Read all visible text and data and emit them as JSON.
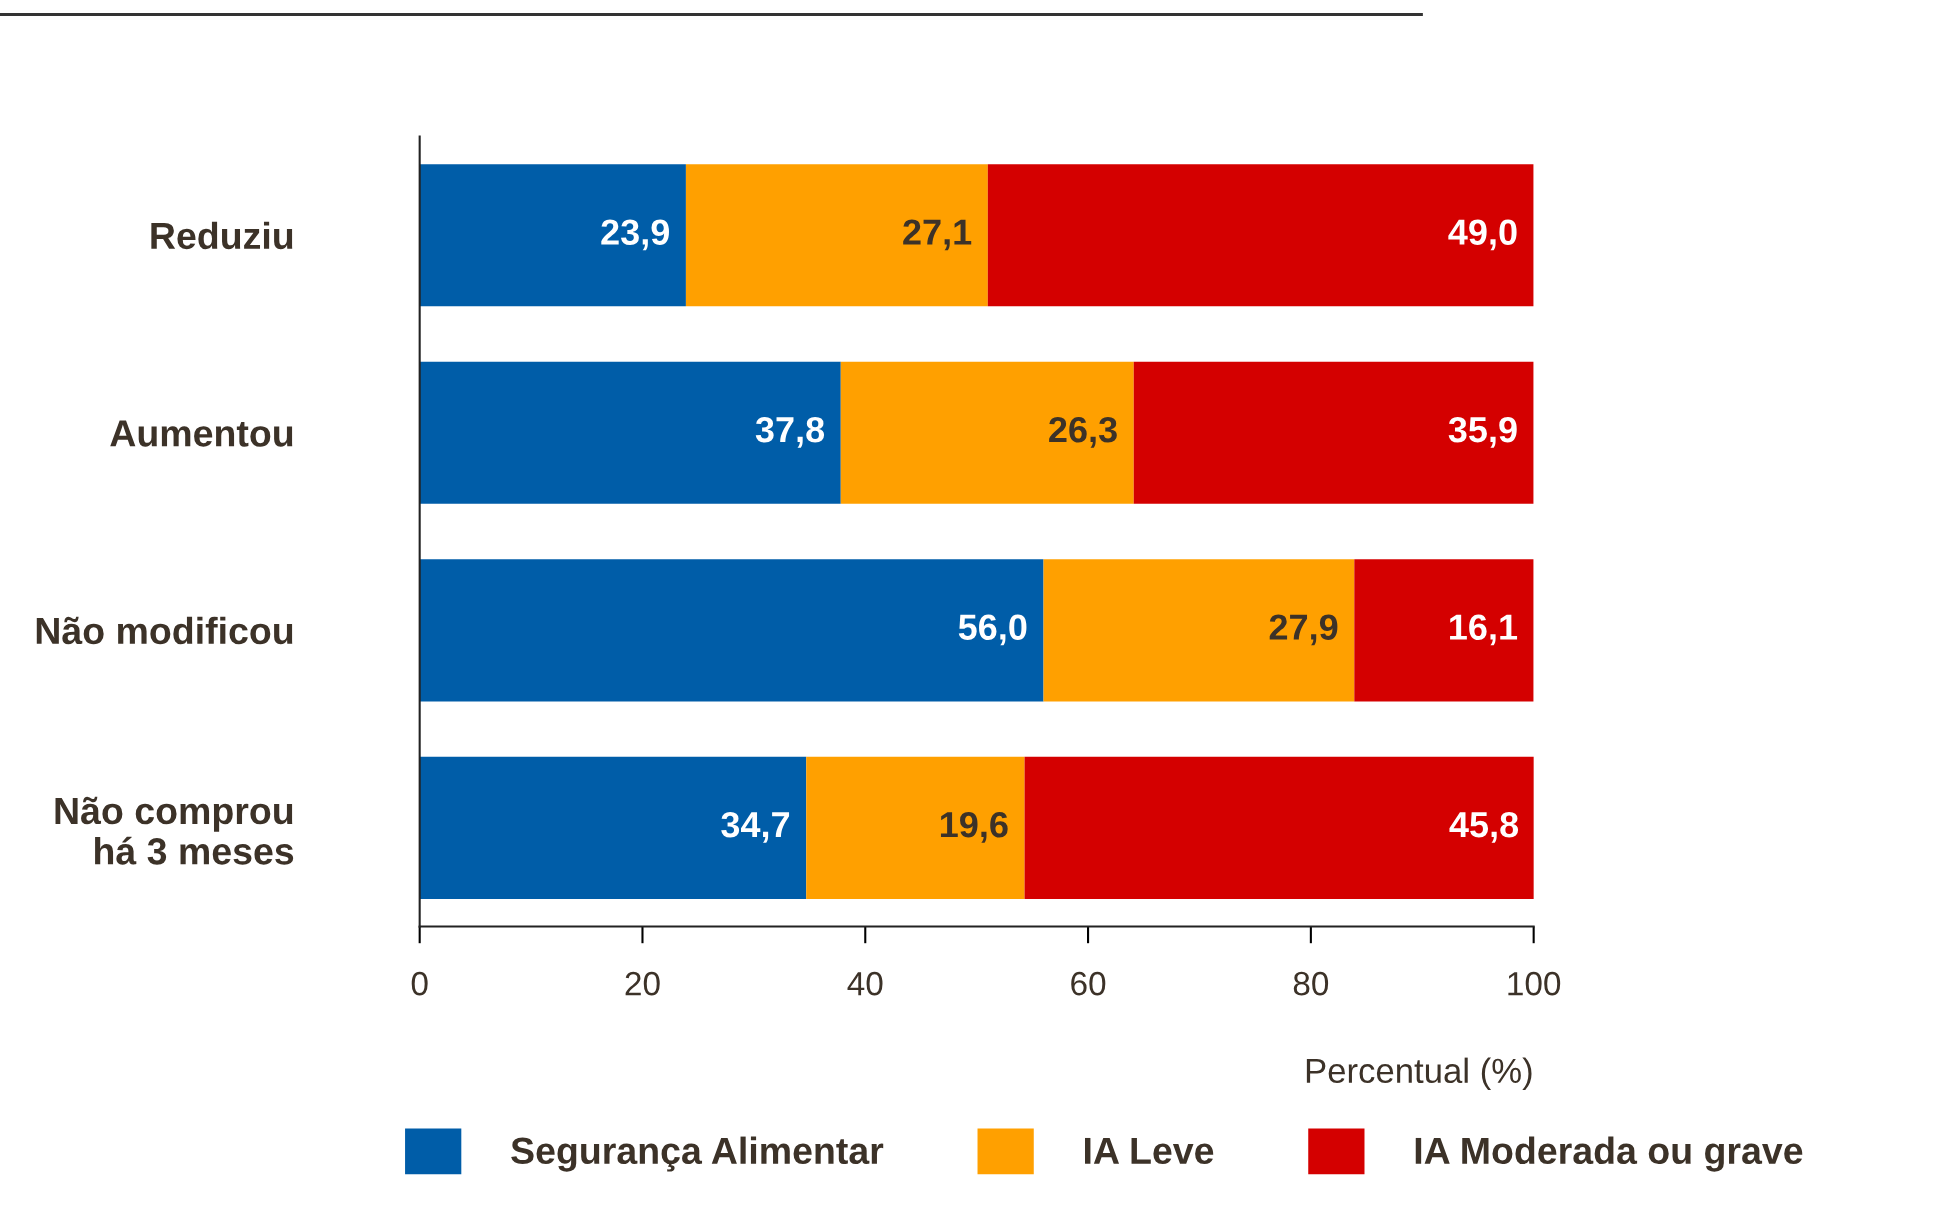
{
  "chart_data": {
    "type": "bar",
    "orientation": "horizontal",
    "stacked": true,
    "categories": [
      "Reduziu",
      "Aumentou",
      "Não modificou",
      "Não comprou\nhá 3 meses"
    ],
    "series": [
      {
        "name": "Segurança Alimentar",
        "color": "#005da8",
        "values": [
          23.9,
          37.8,
          56.0,
          34.7
        ],
        "value_labels": [
          "23,9",
          "37,8",
          "56,0",
          "34,7"
        ]
      },
      {
        "name": "IA Leve",
        "color": "#ffa000",
        "values": [
          27.1,
          26.3,
          27.9,
          19.6
        ],
        "value_labels": [
          "27,1",
          "26,3",
          "27,9",
          "19,6"
        ]
      },
      {
        "name": "IA Moderada ou grave",
        "color": "#d40000",
        "values": [
          49.0,
          35.9,
          16.1,
          45.8
        ],
        "value_labels": [
          "49,0",
          "35,9",
          "16,1",
          "45,8"
        ]
      }
    ],
    "xlabel": "Percentual (%)",
    "xlim": [
      0,
      100
    ],
    "xticks": [
      0,
      20,
      40,
      60,
      80,
      100
    ],
    "grid": false,
    "legend": "bottom"
  }
}
